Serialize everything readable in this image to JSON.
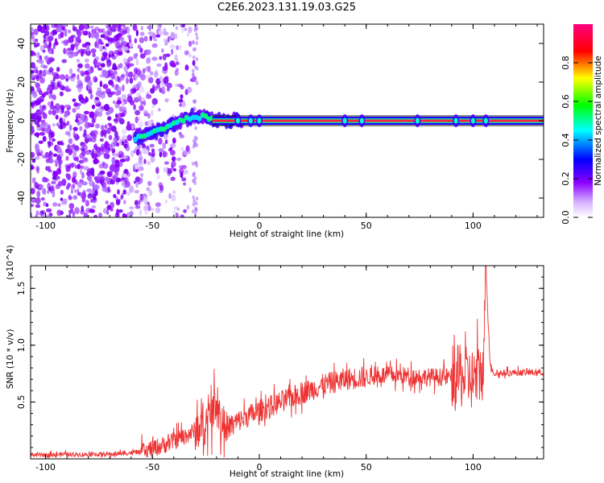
{
  "title": "C2E6.2023.131.19.03.G25",
  "chart_data": [
    {
      "type": "heatmap",
      "xlabel": "Height of straight line (km)",
      "ylabel": "Frequency (Hz)",
      "xlim": [
        -107,
        133
      ],
      "ylim": [
        -50,
        50
      ],
      "x_ticks": [
        -100,
        -50,
        0,
        50,
        100
      ],
      "y_ticks": [
        -40,
        -20,
        0,
        20,
        40
      ],
      "colorbar": {
        "label": "Normalized spectral amplitude",
        "range": [
          0.0,
          1.0
        ],
        "ticks": [
          0.0,
          0.2,
          0.4,
          0.6,
          0.8
        ],
        "tick_labels": [
          "0.0",
          "0.2",
          "0.4",
          "0.6",
          "0.8"
        ],
        "colors": [
          "#ffffff",
          "#8a00ff",
          "#0000ff",
          "#00ffff",
          "#00ff00",
          "#ffff00",
          "#ff0000",
          "#ff0080"
        ]
      },
      "ridge": {
        "x": [
          -58,
          -55,
          -50,
          -45,
          -40,
          -35,
          -30,
          -25,
          -20,
          -15,
          -10,
          -5,
          0,
          130
        ],
        "frequency": [
          -9,
          -8,
          -6,
          -4,
          -2,
          1,
          2,
          2,
          0,
          0,
          0,
          0,
          0,
          0
        ]
      },
      "noise_region_x": [
        -107,
        -30
      ]
    },
    {
      "type": "line",
      "xlabel": "Height of straight line (km)",
      "ylabel": "SNR (10 * v/v)",
      "y_multiplier": "(x10^4)",
      "xlim": [
        -107,
        133
      ],
      "ylim": [
        0,
        1.7
      ],
      "x_ticks": [
        -100,
        -50,
        0,
        50,
        100
      ],
      "y_ticks": [
        0.5,
        1.0,
        1.5
      ],
      "y_tick_labels": [
        "0.5",
        "1.0",
        "1.5"
      ],
      "series": [
        {
          "name": "SNR",
          "color": "#ee3333",
          "x": [
            -107,
            -90,
            -70,
            -55,
            -45,
            -40,
            -35,
            -30,
            -25,
            -22,
            -20,
            -18,
            -15,
            -10,
            -5,
            0,
            10,
            20,
            30,
            40,
            50,
            60,
            70,
            80,
            90,
            95,
            100,
            103,
            105,
            106,
            108,
            110,
            120,
            133
          ],
          "y": [
            0.03,
            0.04,
            0.04,
            0.06,
            0.12,
            0.16,
            0.2,
            0.25,
            0.3,
            0.4,
            0.55,
            0.3,
            0.28,
            0.33,
            0.38,
            0.42,
            0.5,
            0.58,
            0.65,
            0.7,
            0.72,
            0.74,
            0.73,
            0.72,
            0.72,
            0.72,
            0.7,
            0.75,
            0.8,
            1.7,
            0.82,
            0.75,
            0.76,
            0.76
          ]
        }
      ],
      "noise_amplitude": [
        {
          "from": -107,
          "to": -55,
          "amp": 0.02
        },
        {
          "from": -55,
          "to": -30,
          "amp": 0.08
        },
        {
          "from": -30,
          "to": -15,
          "amp": 0.18
        },
        {
          "from": -15,
          "to": 50,
          "amp": 0.1
        },
        {
          "from": 50,
          "to": 90,
          "amp": 0.08
        },
        {
          "from": 90,
          "to": 106,
          "amp": 0.28
        },
        {
          "from": 106,
          "to": 133,
          "amp": 0.03
        }
      ]
    }
  ]
}
